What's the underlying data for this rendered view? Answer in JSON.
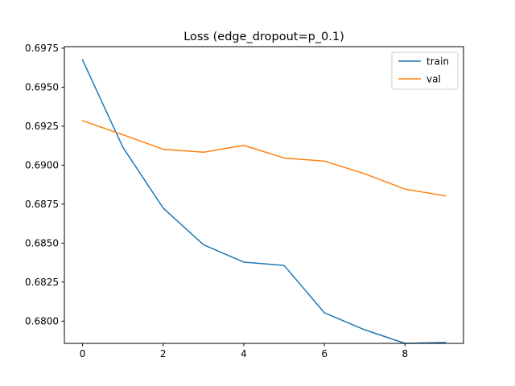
{
  "chart_data": {
    "type": "line",
    "title": "Loss (edge_dropout=p_0.1)",
    "xlabel": "",
    "ylabel": "",
    "x": [
      0,
      1,
      2,
      3,
      4,
      5,
      6,
      7,
      8,
      9
    ],
    "xlim": [
      -0.45,
      9.45
    ],
    "ylim": [
      0.67857,
      0.6976
    ],
    "xticks": [
      0,
      2,
      4,
      6,
      8
    ],
    "yticks": [
      0.68,
      0.6825,
      0.685,
      0.6875,
      0.69,
      0.6925,
      0.695,
      0.6975
    ],
    "ytick_labels": [
      "0.6800",
      "0.6825",
      "0.6850",
      "0.6875",
      "0.6900",
      "0.6925",
      "0.6950",
      "0.6975"
    ],
    "grid": false,
    "legend_position": "top-right",
    "series": [
      {
        "name": "train",
        "color": "#1f77b4",
        "values": [
          0.69675,
          0.69115,
          0.68725,
          0.6849,
          0.68378,
          0.68357,
          0.68053,
          0.67944,
          0.67857,
          0.67863
        ]
      },
      {
        "name": "val",
        "color": "#ff7f0e",
        "values": [
          0.69285,
          0.69195,
          0.69102,
          0.69083,
          0.69127,
          0.69046,
          0.69026,
          0.68945,
          0.68846,
          0.68803
        ]
      }
    ]
  }
}
